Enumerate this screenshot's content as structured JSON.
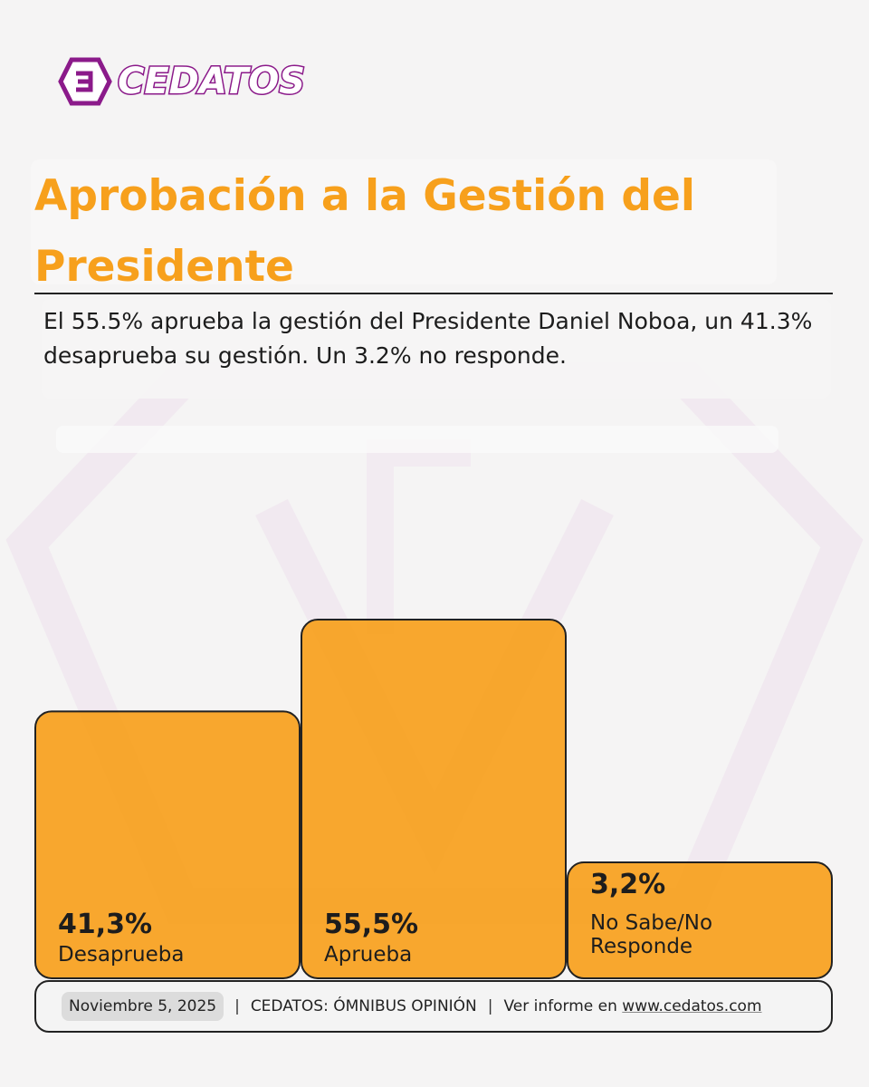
{
  "brand": {
    "name": "CEDATOS",
    "color": "#8b1a8a"
  },
  "title": "Aprobación a la Gestión del Presidente",
  "subtitle": "El 55.5% aprueba la gestión del Presidente Daniel Noboa, un 41.3% desaprueba su gestión. Un 3.2% no responde.",
  "chart_data": {
    "type": "bar",
    "categories": [
      "Desaprueba",
      "Aprueba",
      "No Sabe/No Responde"
    ],
    "values": [
      41.3,
      55.5,
      3.2
    ],
    "value_labels": [
      "41,3%",
      "55,5%",
      "3,2%"
    ],
    "category_labels": [
      [
        "Desaprueba"
      ],
      [
        "Aprueba"
      ],
      [
        "No Sabe/No",
        "Responde"
      ]
    ],
    "bar_color": "#f7a01c",
    "grid": false,
    "legend": "none"
  },
  "footer": {
    "date": "Noviembre 5, 2025",
    "source": "CEDATOS: ÓMNIBUS OPINIÓN",
    "report_prefix": "Ver informe en ",
    "report_link": "www.cedatos.com",
    "separator": "|"
  }
}
